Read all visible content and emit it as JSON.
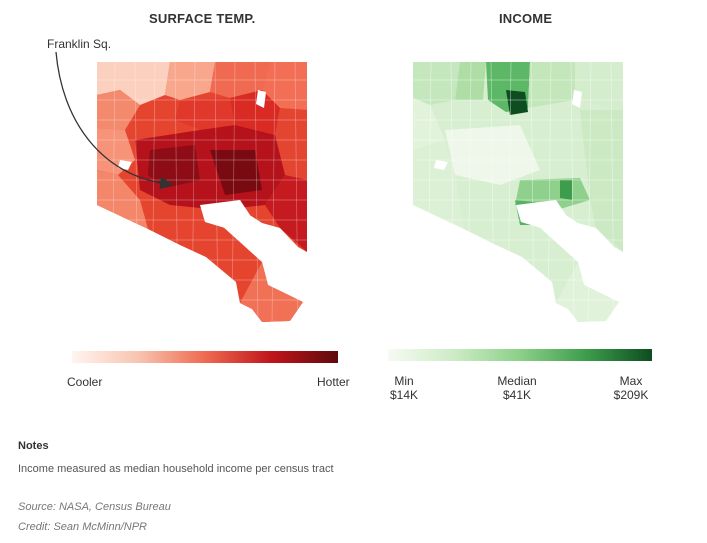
{
  "panels": {
    "temperature": {
      "title": "SURFACE TEMP.",
      "annotation": "Franklin Sq.",
      "legend": {
        "low_label": "Cooler",
        "high_label": "Hotter"
      },
      "colors": {
        "low": "#fff5f0",
        "mid": "#ef6a50",
        "high": "#5e0a0d"
      }
    },
    "income": {
      "title": "INCOME",
      "legend": {
        "min_label": "Min",
        "min_value": "$14K",
        "median_label": "Median",
        "median_value": "$41K",
        "max_label": "Max",
        "max_value": "$209K"
      },
      "colors": {
        "low": "#f6fbf3",
        "mid": "#8cd08a",
        "high": "#0e4d20"
      }
    }
  },
  "notes": {
    "heading": "Notes",
    "text": "Income measured as median household income per census tract"
  },
  "source": "Source: NASA, Census Bureau",
  "credit": "Credit: Sean McMinn/NPR"
}
